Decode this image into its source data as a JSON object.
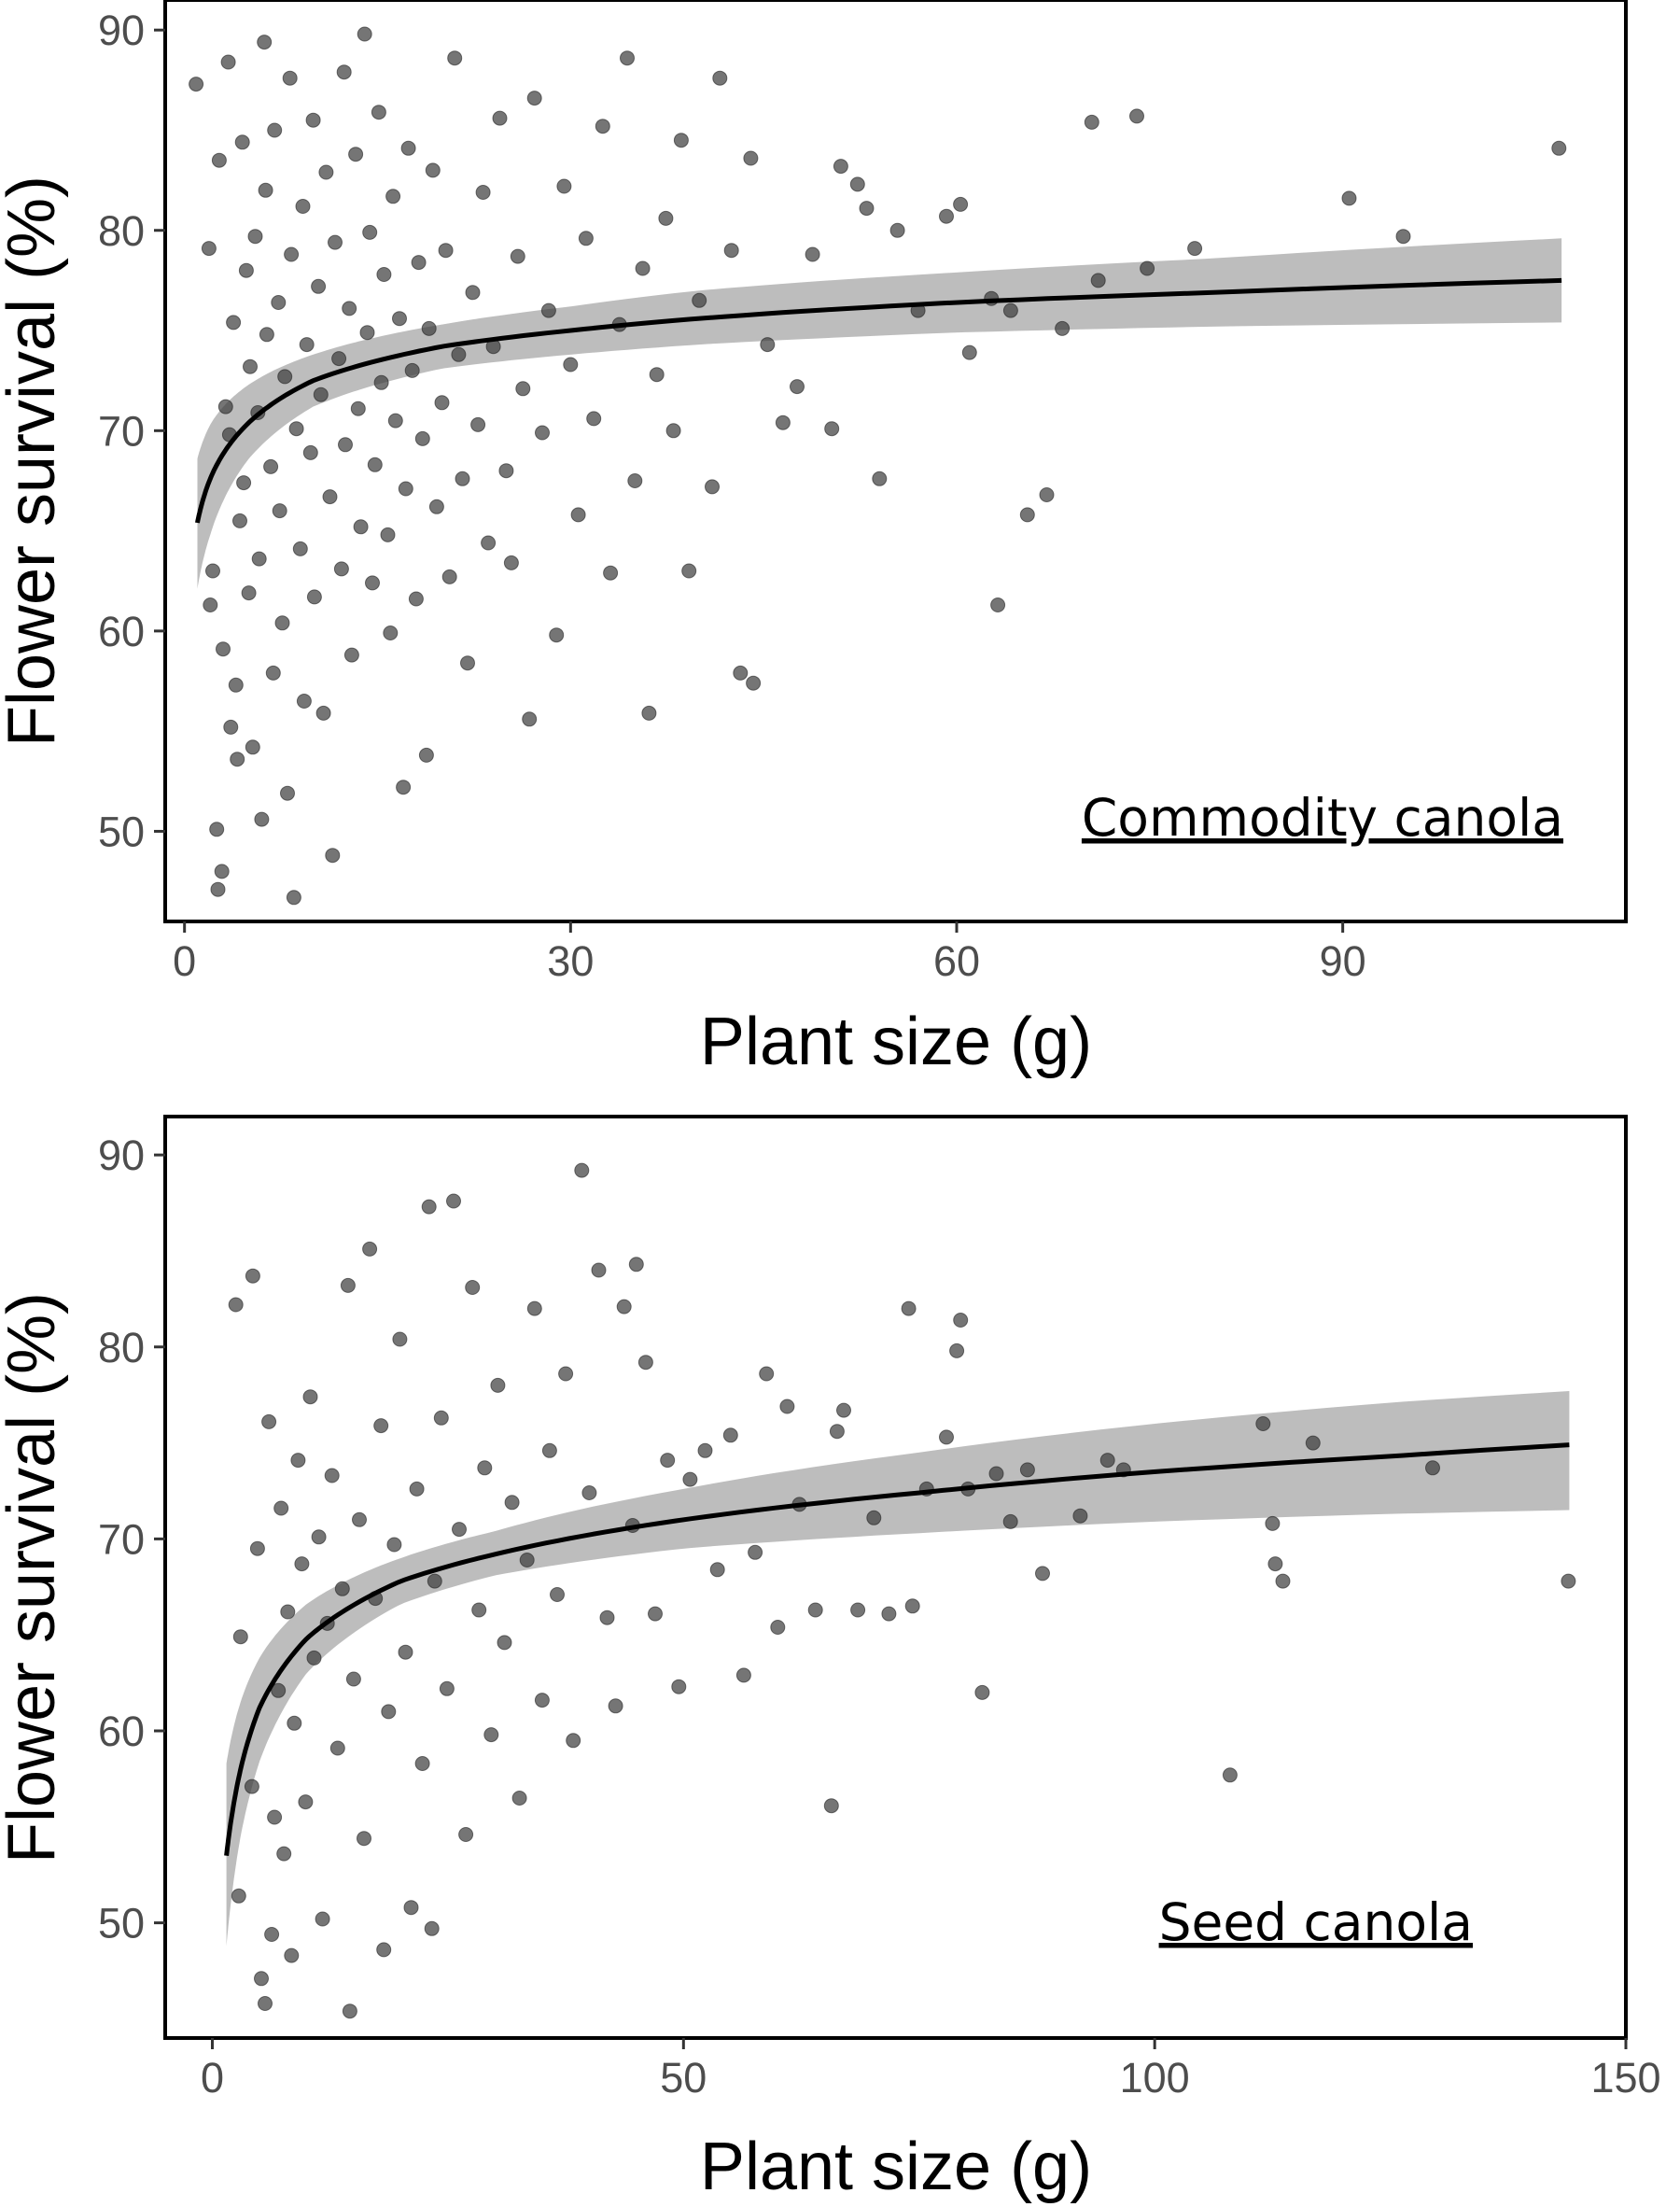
{
  "colors": {
    "points": "#3a3a3a",
    "fit_line": "#000000",
    "ribbon": "#bdbdbd",
    "frame": "#000000",
    "tick_text": "#4d4d4d"
  },
  "chart_data": [
    {
      "type": "scatter",
      "panel_label": "Commodity canola",
      "xlabel": "Plant size (g)",
      "ylabel": "Flower survival (%)",
      "xlim": [
        -1.5,
        112
      ],
      "ylim": [
        45.5,
        91.5
      ],
      "xticks": [
        0,
        30,
        60,
        90
      ],
      "yticks": [
        50,
        60,
        70,
        80,
        90
      ],
      "grid": false,
      "point_count_approx": 700,
      "fit": {
        "x_range": [
          1,
          107
        ],
        "curve": [
          [
            1,
            65.4
          ],
          [
            2,
            67.6
          ],
          [
            5,
            70.4
          ],
          [
            10,
            72.5
          ],
          [
            20,
            74.2
          ],
          [
            30,
            75.0
          ],
          [
            40,
            75.6
          ],
          [
            60,
            76.4
          ],
          [
            80,
            76.9
          ],
          [
            107,
            77.5
          ]
        ],
        "ci_lower": [
          [
            1,
            62.1
          ],
          [
            2,
            64.8
          ],
          [
            5,
            68.6
          ],
          [
            10,
            71.2
          ],
          [
            20,
            73.1
          ],
          [
            30,
            73.8
          ],
          [
            40,
            74.3
          ],
          [
            60,
            74.9
          ],
          [
            80,
            75.2
          ],
          [
            107,
            75.4
          ]
        ],
        "ci_upper": [
          [
            1,
            68.6
          ],
          [
            2,
            70.3
          ],
          [
            5,
            72.3
          ],
          [
            10,
            73.8
          ],
          [
            20,
            75.3
          ],
          [
            30,
            76.2
          ],
          [
            40,
            77.0
          ],
          [
            60,
            77.9
          ],
          [
            80,
            78.6
          ],
          [
            107,
            79.6
          ]
        ]
      },
      "points": [
        [
          0.9,
          87.3
        ],
        [
          1.9,
          79.1
        ],
        [
          2.0,
          61.3
        ],
        [
          2.2,
          63.0
        ],
        [
          2.5,
          50.1
        ],
        [
          2.6,
          47.1
        ],
        [
          2.7,
          83.5
        ],
        [
          2.9,
          48.0
        ],
        [
          3.0,
          59.1
        ],
        [
          3.2,
          71.2
        ],
        [
          3.4,
          88.4
        ],
        [
          3.5,
          69.8
        ],
        [
          3.6,
          55.2
        ],
        [
          3.8,
          75.4
        ],
        [
          4.0,
          57.3
        ],
        [
          4.1,
          53.6
        ],
        [
          4.3,
          65.5
        ],
        [
          4.5,
          84.4
        ],
        [
          4.6,
          67.4
        ],
        [
          4.8,
          78.0
        ],
        [
          5.0,
          61.9
        ],
        [
          5.1,
          73.2
        ],
        [
          5.3,
          54.2
        ],
        [
          5.5,
          79.7
        ],
        [
          5.7,
          70.9
        ],
        [
          5.8,
          63.6
        ],
        [
          6.0,
          50.6
        ],
        [
          6.2,
          89.4
        ],
        [
          6.3,
          82.0
        ],
        [
          6.4,
          74.8
        ],
        [
          6.7,
          68.2
        ],
        [
          6.9,
          57.9
        ],
        [
          7.0,
          85.0
        ],
        [
          7.3,
          76.4
        ],
        [
          7.4,
          66.0
        ],
        [
          7.6,
          60.4
        ],
        [
          7.8,
          72.7
        ],
        [
          8.0,
          51.9
        ],
        [
          8.2,
          87.6
        ],
        [
          8.3,
          78.8
        ],
        [
          8.5,
          46.7
        ],
        [
          8.7,
          70.1
        ],
        [
          9.0,
          64.1
        ],
        [
          9.2,
          81.2
        ],
        [
          9.3,
          56.5
        ],
        [
          9.5,
          74.3
        ],
        [
          9.8,
          68.9
        ],
        [
          10.0,
          85.5
        ],
        [
          10.1,
          61.7
        ],
        [
          10.4,
          77.2
        ],
        [
          10.6,
          71.8
        ],
        [
          10.8,
          55.9
        ],
        [
          11.0,
          82.9
        ],
        [
          11.3,
          66.7
        ],
        [
          11.5,
          48.8
        ],
        [
          11.7,
          79.4
        ],
        [
          12.0,
          73.6
        ],
        [
          12.2,
          63.1
        ],
        [
          12.4,
          87.9
        ],
        [
          12.5,
          69.3
        ],
        [
          12.8,
          76.1
        ],
        [
          13.0,
          58.8
        ],
        [
          13.3,
          83.8
        ],
        [
          13.5,
          71.1
        ],
        [
          13.7,
          65.2
        ],
        [
          14.0,
          89.8
        ],
        [
          14.2,
          74.9
        ],
        [
          14.4,
          79.9
        ],
        [
          14.6,
          62.4
        ],
        [
          14.8,
          68.3
        ],
        [
          15.1,
          85.9
        ],
        [
          15.3,
          72.4
        ],
        [
          15.5,
          77.8
        ],
        [
          15.8,
          64.8
        ],
        [
          16.0,
          59.9
        ],
        [
          16.2,
          81.7
        ],
        [
          16.4,
          70.5
        ],
        [
          16.7,
          75.6
        ],
        [
          17.0,
          52.2
        ],
        [
          17.2,
          67.1
        ],
        [
          17.4,
          84.1
        ],
        [
          17.7,
          73.0
        ],
        [
          18.0,
          61.6
        ],
        [
          18.2,
          78.4
        ],
        [
          18.5,
          69.6
        ],
        [
          18.8,
          53.8
        ],
        [
          19.0,
          75.1
        ],
        [
          19.3,
          83.0
        ],
        [
          19.6,
          66.2
        ],
        [
          20.0,
          71.4
        ],
        [
          20.3,
          79.0
        ],
        [
          20.6,
          62.7
        ],
        [
          21.0,
          88.6
        ],
        [
          21.3,
          73.8
        ],
        [
          21.6,
          67.6
        ],
        [
          22.0,
          58.4
        ],
        [
          22.4,
          76.9
        ],
        [
          22.8,
          70.3
        ],
        [
          23.2,
          81.9
        ],
        [
          23.6,
          64.4
        ],
        [
          24.0,
          74.2
        ],
        [
          24.5,
          85.6
        ],
        [
          25.0,
          68.0
        ],
        [
          25.4,
          63.4
        ],
        [
          25.9,
          78.7
        ],
        [
          26.3,
          72.1
        ],
        [
          26.8,
          55.6
        ],
        [
          27.2,
          86.6
        ],
        [
          27.8,
          69.9
        ],
        [
          28.3,
          76.0
        ],
        [
          28.9,
          59.8
        ],
        [
          29.5,
          82.2
        ],
        [
          30.0,
          73.3
        ],
        [
          30.6,
          65.8
        ],
        [
          31.2,
          79.6
        ],
        [
          31.8,
          70.6
        ],
        [
          32.5,
          85.2
        ],
        [
          33.1,
          62.9
        ],
        [
          33.8,
          75.3
        ],
        [
          34.4,
          88.6
        ],
        [
          35.0,
          67.5
        ],
        [
          35.6,
          78.1
        ],
        [
          36.1,
          55.9
        ],
        [
          36.7,
          72.8
        ],
        [
          37.4,
          80.6
        ],
        [
          38.0,
          70.0
        ],
        [
          38.6,
          84.5
        ],
        [
          39.2,
          63.0
        ],
        [
          40.0,
          76.5
        ],
        [
          41.0,
          67.2
        ],
        [
          41.6,
          87.6
        ],
        [
          42.5,
          79.0
        ],
        [
          43.2,
          57.9
        ],
        [
          44.0,
          83.6
        ],
        [
          44.2,
          57.4
        ],
        [
          45.3,
          74.3
        ],
        [
          46.5,
          70.4
        ],
        [
          47.6,
          72.2
        ],
        [
          48.8,
          78.8
        ],
        [
          50.3,
          70.1
        ],
        [
          51.0,
          83.2
        ],
        [
          52.3,
          82.3
        ],
        [
          53.0,
          81.1
        ],
        [
          54.0,
          67.6
        ],
        [
          55.4,
          80.0
        ],
        [
          57.0,
          76.0
        ],
        [
          59.2,
          80.7
        ],
        [
          60.3,
          81.3
        ],
        [
          61.0,
          73.9
        ],
        [
          62.7,
          76.6
        ],
        [
          63.2,
          61.3
        ],
        [
          64.2,
          76.0
        ],
        [
          65.5,
          65.8
        ],
        [
          67.0,
          66.8
        ],
        [
          68.2,
          75.1
        ],
        [
          70.5,
          85.4
        ],
        [
          71.0,
          77.5
        ],
        [
          74.0,
          85.7
        ],
        [
          74.8,
          78.1
        ],
        [
          78.5,
          79.1
        ],
        [
          90.5,
          81.6
        ],
        [
          94.7,
          79.7
        ],
        [
          106.8,
          84.1
        ]
      ]
    },
    {
      "type": "scatter",
      "panel_label": "Seed canola",
      "xlabel": "Plant size (g)",
      "ylabel": "Flower survival (%)",
      "xlim": [
        -5,
        150
      ],
      "ylim": [
        44,
        92
      ],
      "xticks": [
        0,
        50,
        100,
        150
      ],
      "yticks": [
        50,
        60,
        70,
        80,
        90
      ],
      "grid": false,
      "point_count_approx": 600,
      "fit": {
        "x_range": [
          1.5,
          144
        ],
        "curve": [
          [
            1.5,
            53.5
          ],
          [
            3,
            58.0
          ],
          [
            5,
            61.2
          ],
          [
            10,
            64.8
          ],
          [
            20,
            67.8
          ],
          [
            30,
            69.2
          ],
          [
            50,
            71.0
          ],
          [
            75,
            72.4
          ],
          [
            100,
            73.5
          ],
          [
            125,
            74.3
          ],
          [
            144,
            74.9
          ]
        ],
        "ci_lower": [
          [
            1.5,
            48.8
          ],
          [
            3,
            54.5
          ],
          [
            5,
            58.4
          ],
          [
            10,
            63.0
          ],
          [
            20,
            66.6
          ],
          [
            30,
            68.1
          ],
          [
            50,
            69.5
          ],
          [
            75,
            70.3
          ],
          [
            100,
            70.9
          ],
          [
            125,
            71.3
          ],
          [
            144,
            71.5
          ]
        ],
        "ci_upper": [
          [
            1.5,
            58.3
          ],
          [
            3,
            61.5
          ],
          [
            5,
            63.8
          ],
          [
            10,
            66.6
          ],
          [
            20,
            69.0
          ],
          [
            30,
            70.4
          ],
          [
            50,
            72.6
          ],
          [
            75,
            74.5
          ],
          [
            100,
            76.0
          ],
          [
            125,
            77.1
          ],
          [
            144,
            77.7
          ]
        ]
      },
      "points": [
        [
          2.5,
          82.2
        ],
        [
          2.8,
          51.4
        ],
        [
          3.0,
          64.9
        ],
        [
          4.2,
          57.1
        ],
        [
          4.3,
          83.7
        ],
        [
          4.8,
          69.5
        ],
        [
          5.2,
          47.1
        ],
        [
          5.6,
          45.8
        ],
        [
          6.0,
          76.1
        ],
        [
          6.3,
          49.4
        ],
        [
          6.6,
          55.5
        ],
        [
          7.0,
          62.1
        ],
        [
          7.3,
          71.6
        ],
        [
          7.6,
          53.6
        ],
        [
          8.0,
          66.2
        ],
        [
          8.4,
          48.3
        ],
        [
          8.7,
          60.4
        ],
        [
          9.1,
          74.1
        ],
        [
          9.5,
          68.7
        ],
        [
          9.9,
          56.3
        ],
        [
          10.4,
          77.4
        ],
        [
          10.8,
          63.8
        ],
        [
          11.3,
          70.1
        ],
        [
          11.7,
          50.2
        ],
        [
          12.2,
          65.6
        ],
        [
          12.7,
          73.3
        ],
        [
          13.3,
          59.1
        ],
        [
          13.8,
          67.4
        ],
        [
          14.4,
          83.2
        ],
        [
          14.6,
          45.4
        ],
        [
          15.0,
          62.7
        ],
        [
          15.6,
          71.0
        ],
        [
          16.1,
          54.4
        ],
        [
          16.7,
          85.1
        ],
        [
          17.3,
          66.9
        ],
        [
          17.9,
          75.9
        ],
        [
          18.2,
          48.6
        ],
        [
          18.7,
          61.0
        ],
        [
          19.3,
          69.7
        ],
        [
          19.9,
          80.4
        ],
        [
          20.5,
          64.1
        ],
        [
          21.1,
          50.8
        ],
        [
          21.7,
          72.6
        ],
        [
          22.3,
          58.3
        ],
        [
          23.0,
          87.3
        ],
        [
          23.3,
          49.7
        ],
        [
          23.6,
          67.8
        ],
        [
          24.3,
          76.3
        ],
        [
          24.9,
          62.2
        ],
        [
          25.6,
          87.6
        ],
        [
          26.2,
          70.5
        ],
        [
          26.9,
          54.6
        ],
        [
          27.6,
          83.1
        ],
        [
          28.3,
          66.3
        ],
        [
          28.9,
          73.7
        ],
        [
          29.6,
          59.8
        ],
        [
          30.3,
          78.0
        ],
        [
          31.0,
          64.6
        ],
        [
          31.8,
          71.9
        ],
        [
          32.6,
          56.5
        ],
        [
          33.4,
          68.9
        ],
        [
          34.2,
          82.0
        ],
        [
          35.0,
          61.6
        ],
        [
          35.8,
          74.6
        ],
        [
          36.6,
          67.1
        ],
        [
          37.5,
          78.6
        ],
        [
          38.3,
          59.5
        ],
        [
          39.2,
          89.2
        ],
        [
          40.0,
          72.4
        ],
        [
          41.0,
          84.0
        ],
        [
          41.9,
          65.9
        ],
        [
          42.8,
          61.3
        ],
        [
          43.7,
          82.1
        ],
        [
          44.6,
          70.7
        ],
        [
          45.0,
          84.3
        ],
        [
          46.0,
          79.2
        ],
        [
          47.0,
          66.1
        ],
        [
          48.3,
          74.1
        ],
        [
          49.5,
          62.3
        ],
        [
          50.7,
          73.1
        ],
        [
          52.3,
          74.6
        ],
        [
          53.6,
          68.4
        ],
        [
          55.0,
          75.4
        ],
        [
          56.4,
          62.9
        ],
        [
          57.6,
          69.3
        ],
        [
          58.8,
          78.6
        ],
        [
          60.0,
          65.4
        ],
        [
          61.0,
          76.9
        ],
        [
          62.3,
          71.8
        ],
        [
          64.0,
          66.3
        ],
        [
          65.7,
          56.1
        ],
        [
          66.3,
          75.6
        ],
        [
          67.0,
          76.7
        ],
        [
          68.5,
          66.3
        ],
        [
          70.2,
          71.1
        ],
        [
          71.8,
          66.1
        ],
        [
          73.9,
          82.0
        ],
        [
          74.3,
          66.5
        ],
        [
          75.8,
          72.6
        ],
        [
          77.9,
          75.3
        ],
        [
          79.0,
          79.8
        ],
        [
          79.4,
          81.4
        ],
        [
          80.2,
          72.6
        ],
        [
          81.7,
          62.0
        ],
        [
          83.2,
          73.4
        ],
        [
          84.7,
          70.9
        ],
        [
          86.5,
          73.6
        ],
        [
          88.1,
          68.2
        ],
        [
          92.1,
          71.2
        ],
        [
          95.0,
          74.1
        ],
        [
          96.7,
          73.6
        ],
        [
          108.0,
          57.7
        ],
        [
          111.5,
          76.0
        ],
        [
          112.5,
          70.8
        ],
        [
          112.8,
          68.7
        ],
        [
          113.6,
          67.8
        ],
        [
          116.8,
          75.0
        ],
        [
          129.5,
          73.7
        ],
        [
          143.9,
          67.8
        ]
      ]
    }
  ]
}
